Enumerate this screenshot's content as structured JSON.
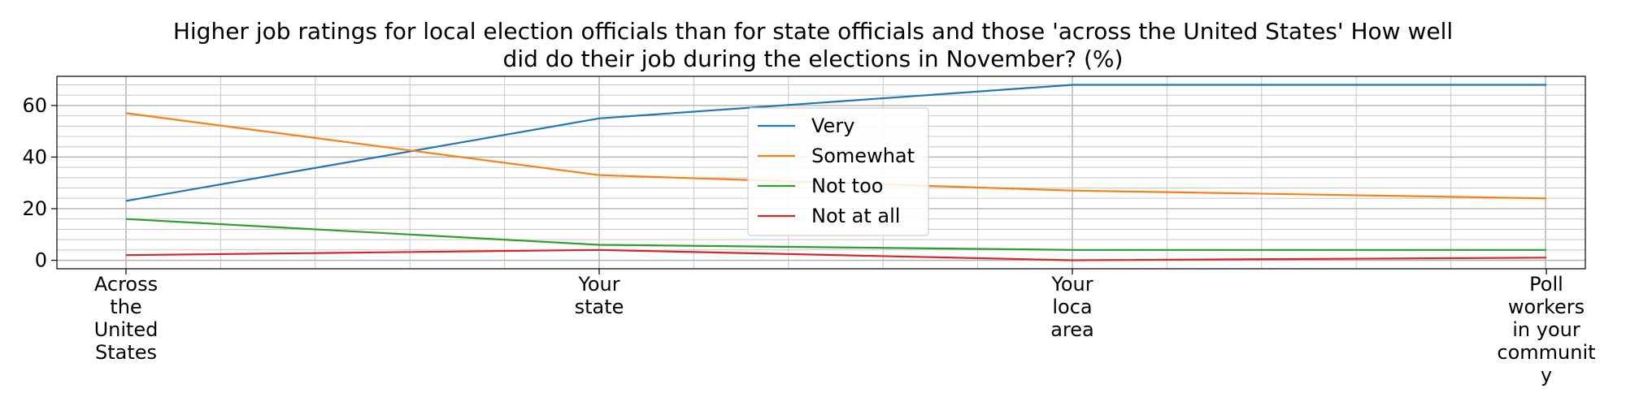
{
  "chart_data": {
    "type": "line",
    "title_lines": [
      "Higher job ratings for local election officials than for state officials and those 'across the United States' How well",
      "did do their job during the elections in November? (%)"
    ],
    "xlabel": "",
    "ylabel": "",
    "categories": [
      [
        "Across",
        "the",
        "United",
        "States"
      ],
      [
        "Your",
        "state"
      ],
      [
        "Your",
        "loca",
        "area"
      ],
      [
        "Poll",
        "workers",
        "in your",
        "communit",
        "y"
      ]
    ],
    "series": [
      {
        "name": "Very",
        "color": "#1f77b4",
        "values": [
          23,
          55,
          68,
          68
        ]
      },
      {
        "name": "Somewhat",
        "color": "#ff7f0e",
        "values": [
          57,
          33,
          27,
          24
        ]
      },
      {
        "name": "Not too",
        "color": "#2ca02c",
        "values": [
          16,
          6,
          4,
          4
        ]
      },
      {
        "name": "Not at all",
        "color": "#d62728",
        "values": [
          2,
          4,
          0,
          1
        ]
      }
    ],
    "yticks": [
      0,
      20,
      40,
      60
    ],
    "ylim": [
      -3.3,
      71.3
    ],
    "grid": true,
    "legend_position": "center"
  }
}
